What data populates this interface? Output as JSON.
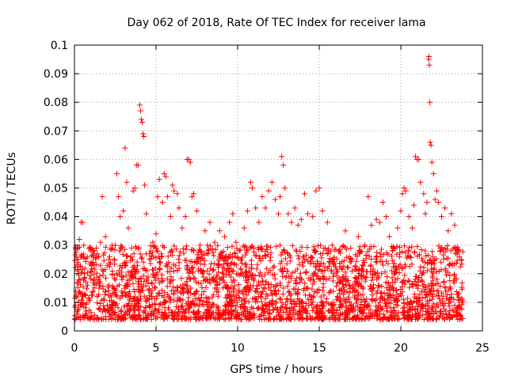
{
  "chart_data": {
    "type": "scatter",
    "title": "Day 062 of 2018, Rate Of TEC Index for receiver lama",
    "xlabel": "GPS time / hours",
    "ylabel": "ROTI / TECUs",
    "xlim": [
      0,
      25
    ],
    "ylim": [
      0,
      0.1
    ],
    "xticks": [
      "0",
      "5",
      "10",
      "15",
      "20",
      "25"
    ],
    "xtick_values": [
      0,
      5,
      10,
      15,
      20,
      25
    ],
    "yticks": [
      "0",
      "0.01",
      "0.02",
      "0.03",
      "0.04",
      "0.05",
      "0.06",
      "0.07",
      "0.08",
      "0.09",
      "0.1"
    ],
    "ytick_values": [
      0,
      0.01,
      0.02,
      0.03,
      0.04,
      0.05,
      0.06,
      0.07,
      0.08,
      0.09,
      0.1
    ],
    "grid": true,
    "marker": "+",
    "color": "#ff0000",
    "series": [
      {
        "name": "ROTI",
        "points": [
          [
            0.1,
            0.012
          ],
          [
            0.2,
            0.029
          ],
          [
            0.3,
            0.032
          ],
          [
            0.4,
            0.038
          ],
          [
            0.5,
            0.038
          ],
          [
            0.6,
            0.02
          ],
          [
            0.8,
            0.016
          ],
          [
            1.0,
            0.021
          ],
          [
            1.2,
            0.018
          ],
          [
            1.4,
            0.027
          ],
          [
            1.6,
            0.031
          ],
          [
            1.7,
            0.047
          ],
          [
            1.9,
            0.033
          ],
          [
            2.1,
            0.025
          ],
          [
            2.3,
            0.03
          ],
          [
            2.5,
            0.03
          ],
          [
            2.6,
            0.055
          ],
          [
            2.7,
            0.047
          ],
          [
            2.8,
            0.04
          ],
          [
            3.0,
            0.042
          ],
          [
            3.1,
            0.064
          ],
          [
            3.2,
            0.052
          ],
          [
            3.3,
            0.036
          ],
          [
            3.5,
            0.029
          ],
          [
            3.6,
            0.049
          ],
          [
            3.7,
            0.05
          ],
          [
            3.8,
            0.058
          ],
          [
            3.9,
            0.058
          ],
          [
            4.0,
            0.079
          ],
          [
            4.05,
            0.077
          ],
          [
            4.1,
            0.074
          ],
          [
            4.15,
            0.073
          ],
          [
            4.2,
            0.069
          ],
          [
            4.25,
            0.068
          ],
          [
            4.3,
            0.051
          ],
          [
            4.4,
            0.041
          ],
          [
            4.6,
            0.027
          ],
          [
            4.8,
            0.031
          ],
          [
            5.0,
            0.034
          ],
          [
            5.1,
            0.047
          ],
          [
            5.2,
            0.053
          ],
          [
            5.4,
            0.045
          ],
          [
            5.5,
            0.055
          ],
          [
            5.6,
            0.054
          ],
          [
            5.7,
            0.047
          ],
          [
            5.9,
            0.04
          ],
          [
            6.0,
            0.051
          ],
          [
            6.1,
            0.049
          ],
          [
            6.3,
            0.048
          ],
          [
            6.4,
            0.043
          ],
          [
            6.6,
            0.036
          ],
          [
            6.8,
            0.04
          ],
          [
            6.9,
            0.06
          ],
          [
            7.0,
            0.06
          ],
          [
            7.1,
            0.059
          ],
          [
            7.2,
            0.047
          ],
          [
            7.3,
            0.048
          ],
          [
            7.5,
            0.042
          ],
          [
            7.7,
            0.03
          ],
          [
            8.0,
            0.035
          ],
          [
            8.3,
            0.038
          ],
          [
            8.6,
            0.031
          ],
          [
            8.9,
            0.035
          ],
          [
            9.2,
            0.033
          ],
          [
            9.5,
            0.038
          ],
          [
            9.7,
            0.041
          ],
          [
            9.9,
            0.031
          ],
          [
            10.1,
            0.028
          ],
          [
            10.4,
            0.036
          ],
          [
            10.6,
            0.042
          ],
          [
            10.8,
            0.052
          ],
          [
            10.9,
            0.05
          ],
          [
            11.1,
            0.043
          ],
          [
            11.3,
            0.038
          ],
          [
            11.5,
            0.047
          ],
          [
            11.7,
            0.043
          ],
          [
            11.9,
            0.049
          ],
          [
            12.1,
            0.052
          ],
          [
            12.3,
            0.046
          ],
          [
            12.5,
            0.041
          ],
          [
            12.6,
            0.047
          ],
          [
            12.7,
            0.061
          ],
          [
            12.8,
            0.058
          ],
          [
            12.9,
            0.05
          ],
          [
            13.1,
            0.041
          ],
          [
            13.3,
            0.038
          ],
          [
            13.5,
            0.043
          ],
          [
            13.7,
            0.037
          ],
          [
            13.9,
            0.039
          ],
          [
            14.1,
            0.048
          ],
          [
            14.3,
            0.041
          ],
          [
            14.6,
            0.04
          ],
          [
            14.8,
            0.049
          ],
          [
            15.0,
            0.05
          ],
          [
            15.2,
            0.042
          ],
          [
            15.5,
            0.038
          ],
          [
            15.8,
            0.03
          ],
          [
            16.2,
            0.028
          ],
          [
            16.6,
            0.035
          ],
          [
            17.0,
            0.025
          ],
          [
            17.4,
            0.033
          ],
          [
            17.8,
            0.03
          ],
          [
            18.0,
            0.047
          ],
          [
            18.2,
            0.037
          ],
          [
            18.5,
            0.039
          ],
          [
            18.7,
            0.038
          ],
          [
            18.9,
            0.045
          ],
          [
            19.1,
            0.04
          ],
          [
            19.3,
            0.033
          ],
          [
            19.5,
            0.028
          ],
          [
            19.8,
            0.036
          ],
          [
            20.0,
            0.042
          ],
          [
            20.1,
            0.048
          ],
          [
            20.2,
            0.05
          ],
          [
            20.3,
            0.049
          ],
          [
            20.5,
            0.04
          ],
          [
            20.7,
            0.036
          ],
          [
            20.8,
            0.044
          ],
          [
            20.9,
            0.061
          ],
          [
            21.0,
            0.06
          ],
          [
            21.1,
            0.06
          ],
          [
            21.2,
            0.052
          ],
          [
            21.4,
            0.048
          ],
          [
            21.5,
            0.041
          ],
          [
            21.6,
            0.045
          ],
          [
            21.7,
            0.095
          ],
          [
            21.72,
            0.096
          ],
          [
            21.75,
            0.093
          ],
          [
            21.78,
            0.08
          ],
          [
            21.8,
            0.066
          ],
          [
            21.85,
            0.065
          ],
          [
            21.9,
            0.059
          ],
          [
            22.0,
            0.055
          ],
          [
            22.1,
            0.046
          ],
          [
            22.2,
            0.049
          ],
          [
            22.3,
            0.045
          ],
          [
            22.5,
            0.04
          ],
          [
            22.7,
            0.043
          ],
          [
            22.9,
            0.035
          ],
          [
            23.1,
            0.041
          ],
          [
            23.3,
            0.037
          ],
          [
            23.5,
            0.028
          ],
          [
            23.7,
            0.025
          ]
        ]
      }
    ],
    "dense_band": {
      "note": "many additional measurements fill the band",
      "x_range": [
        0,
        23.8
      ],
      "y_low": 0.004,
      "y_high": 0.03
    }
  }
}
